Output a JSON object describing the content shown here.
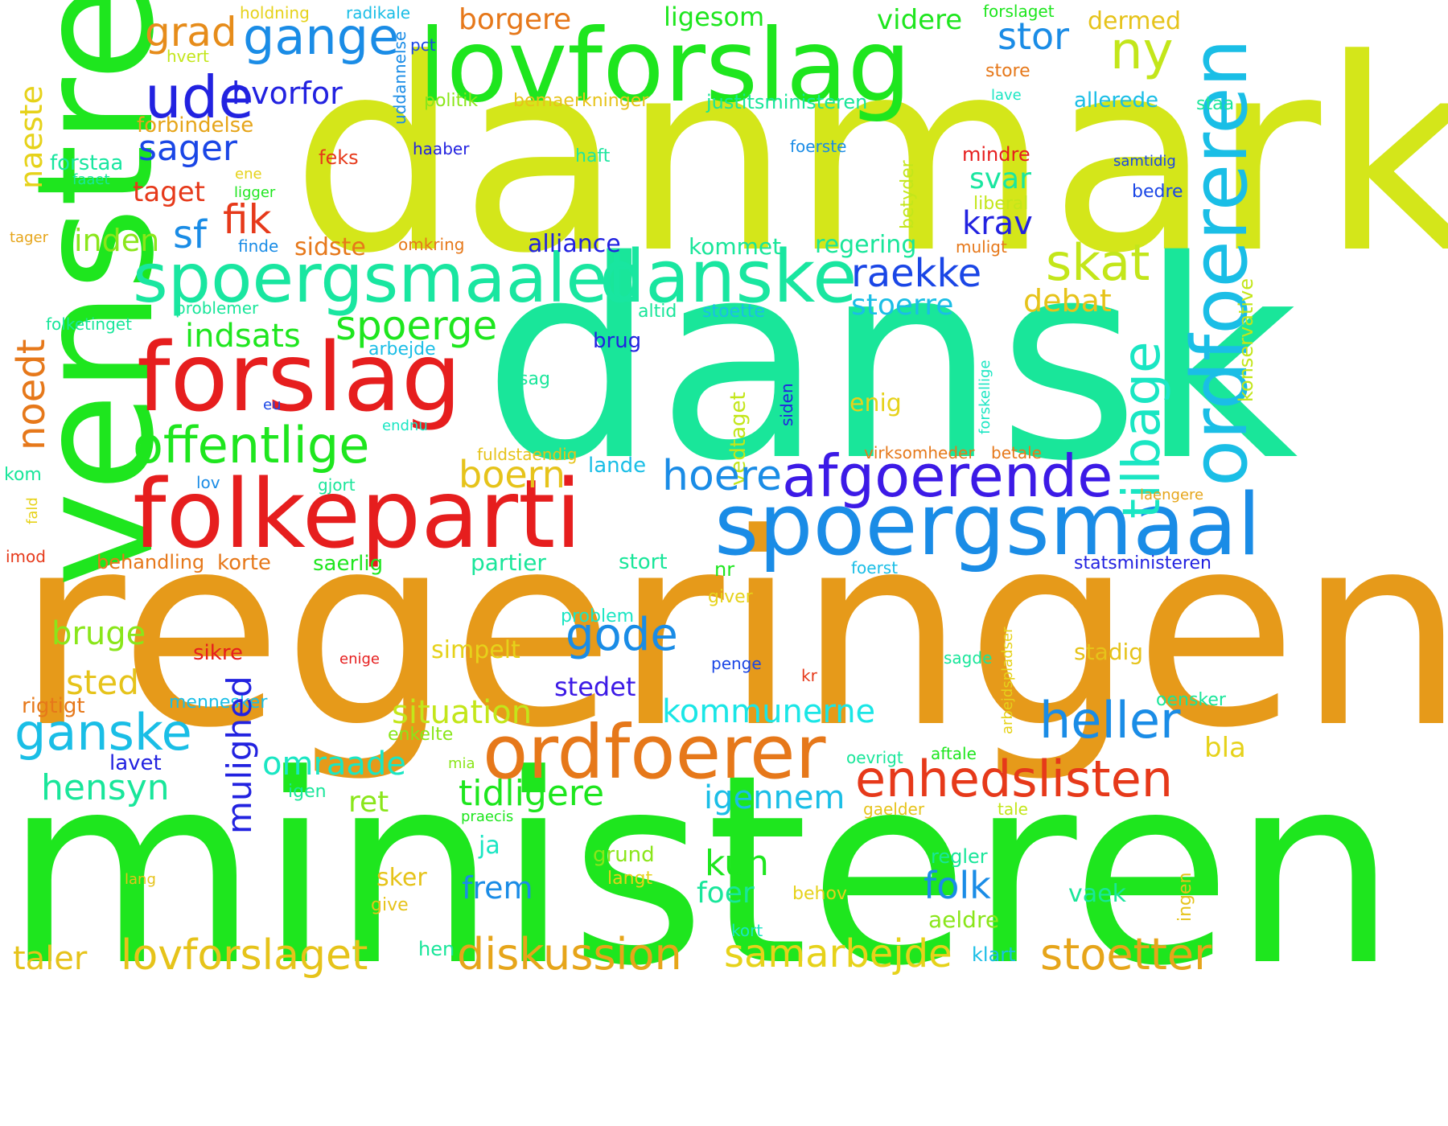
{
  "colors": {
    "green": "#1ee61e",
    "lime": "#d4e61a",
    "teal": "#19e69a",
    "orange": "#e69a1a",
    "red": "#e61e1e",
    "redorange": "#e6391a",
    "blue": "#1a8ce6",
    "skyblue": "#1abee6",
    "indigo": "#2222e0",
    "violet": "#3c1ae6",
    "cyan": "#1ae6e6",
    "yellow": "#e6d21a",
    "gold": "#e6c31a",
    "lightgreen": "#8ae61a",
    "olive": "#c3e61a",
    "darkorange": "#e6781a"
  },
  "words": {
    "danmark": "danmark",
    "dansk": "dansk",
    "regeringen": "regeringen",
    "ministeren": "ministeren",
    "venstre": "venstre",
    "lovforslag": "lovforslag",
    "folkeparti": "folkeparti",
    "forslag": "forslag",
    "spoergsmaal": "spoergsmaal",
    "spoergsmaalet": "spoergsmaalet",
    "danske": "danske",
    "ordfoereren": "ordfoereren",
    "ordfoerer": "ordfoerer",
    "afgoerende": "afgoerende",
    "enhedslisten": "enhedslisten",
    "offentlige": "offentlige",
    "ude": "ude",
    "gange": "gange",
    "grad": "grad",
    "borgere": "borgere",
    "ligesom": "ligesom",
    "videre": "videre",
    "dermed": "dermed",
    "holdning": "holdning",
    "radikale": "radikale",
    "forslaget": "forslaget",
    "stor": "stor",
    "ny": "ny",
    "uddannelse": "uddannelse",
    "pct": "pct",
    "hvert": "hvert",
    "store": "store",
    "hvorfor": "hvorfor",
    "naeste": "naeste",
    "politik": "politik",
    "bemaerkninger": "bemaerkninger",
    "justitsministeren": "justitsministeren",
    "lave": "lave",
    "allerede": "allerede",
    "staa": "staa",
    "forbindelse": "forbindelse",
    "sager": "sager",
    "haaber": "haaber",
    "foerste": "foerste",
    "mindre": "mindre",
    "forstaa": "forstaa",
    "feks": "feks",
    "haft": "haft",
    "samtidig": "samtidig",
    "faaet": "faaet",
    "ene": "ene",
    "betyder": "betyder",
    "taget": "taget",
    "ligger": "ligger",
    "svar": "svar",
    "bedre": "bedre",
    "liberal": "liberal",
    "fik": "fik",
    "krav": "krav",
    "tager": "tager",
    "inden": "inden",
    "sf": "sf",
    "finde": "finde",
    "omkring": "omkring",
    "muligt": "muligt",
    "konservative": "konservative",
    "sidste": "sidste",
    "alliance": "alliance",
    "kommet": "kommet",
    "regering": "regering",
    "skat": "skat",
    "raekke": "raekke",
    "problemer": "problemer",
    "altid": "altid",
    "stoette": "stoette",
    "storre": "stoerre",
    "debat": "debat",
    "tilbage": "tilbage",
    "indsats": "indsats",
    "spoerge": "spoerge",
    "folketinget": "folketinget",
    "arbejde": "arbejde",
    "forskellige": "forskellige",
    "noedt": "noedt",
    "brug": "brug",
    "siden": "siden",
    "eu": "eu",
    "sag": "sag",
    "vedtaget": "vedtaget",
    "enig": "enig",
    "endnu": "endnu",
    "fuldstaendig": "fuldstaendig",
    "boern": "boern",
    "virksomheder": "virksomheder",
    "betale": "betale",
    "kom": "kom",
    "lande": "lande",
    "hoere": "hoere",
    "lov": "lov",
    "gjort": "gjort",
    "fald": "fald",
    "laengere": "laengere",
    "imod": "imod",
    "behandling": "behandling",
    "korte": "korte",
    "saerlig": "saerlig",
    "partier": "partier",
    "stort": "stort",
    "foerst": "foerst",
    "statsministeren": "statsministeren",
    "nr": "nr",
    "giver": "giver",
    "gode": "gode",
    "bruge": "bruge",
    "problem": "problem",
    "arbejdspladser": "arbejdspladser",
    "sikre": "sikre",
    "simpelt": "simpelt",
    "stadig": "stadig",
    "enige": "enige",
    "penge": "penge",
    "sagde": "sagde",
    "sted": "sted",
    "kr": "kr",
    "stedet": "stedet",
    "mennesker": "mennesker",
    "oensker": "oensker",
    "rigtigt": "rigtigt",
    "situation": "situation",
    "kommunerne": "kommunerne",
    "heller": "heller",
    "ganske": "ganske",
    "mulighed": "mulighed",
    "enkelte": "enkelte",
    "lavet": "lavet",
    "omraade": "omraade",
    "bla": "bla",
    "mia": "mia",
    "oevrigt": "oevrigt",
    "aftale": "aftale",
    "hensyn": "hensyn",
    "ret": "ret",
    "tidligere": "tidligere",
    "igen": "igen",
    "igennem": "igennem",
    "gaelder": "gaelder",
    "tale": "tale",
    "praecis": "praecis",
    "ja": "ja",
    "grund": "grund",
    "kun": "kun",
    "regler": "regler",
    "lang": "lang",
    "langt": "langt",
    "ingen": "ingen",
    "sker": "sker",
    "frem": "frem",
    "foer": "foer",
    "folk": "folk",
    "vaek": "vaek",
    "behov": "behov",
    "give": "give",
    "aeldre": "aeldre",
    "kort": "kort",
    "taler": "taler",
    "lovforslaget": "lovforslaget",
    "hen": "hen",
    "diskussion": "diskussion",
    "samarbejde": "samarbejde",
    "klart": "klart",
    "stoetter": "stoetter"
  }
}
